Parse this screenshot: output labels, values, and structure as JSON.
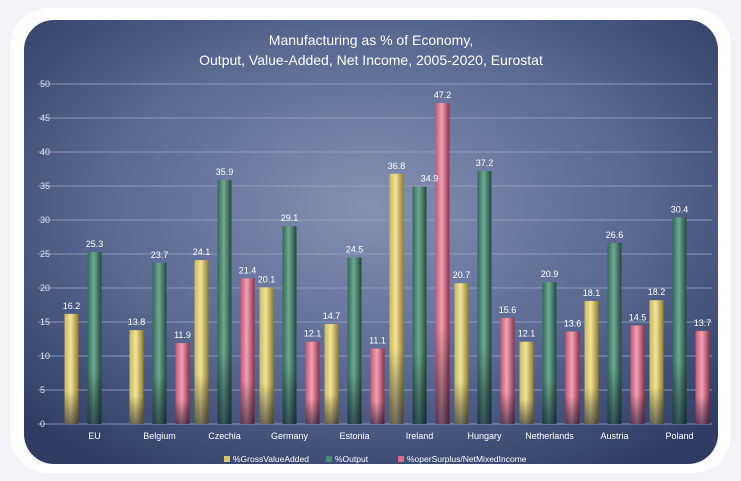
{
  "chart_data": {
    "type": "bar",
    "title": "Manufacturing as % of Economy,",
    "subtitle": "Output, Value-Added, Net Income, 2005-2020, Eurostat",
    "categories": [
      "EU",
      "Belgium",
      "Czechia",
      "Germany",
      "Estonia",
      "Ireland",
      "Hungary",
      "Netherlands",
      "Austria",
      "Poland"
    ],
    "series": [
      {
        "name": "%GrossValueAdded",
        "values": [
          16.2,
          13.8,
          24.1,
          20.1,
          14.7,
          36.8,
          20.7,
          12.1,
          18.1,
          18.2
        ]
      },
      {
        "name": "%Output",
        "values": [
          25.3,
          23.7,
          35.9,
          29.1,
          24.5,
          34.9,
          37.2,
          20.9,
          26.6,
          30.4
        ]
      },
      {
        "name": "%operSurplus/NetMixedIncome",
        "values": [
          null,
          11.9,
          21.4,
          12.1,
          11.1,
          47.2,
          15.6,
          13.6,
          14.5,
          13.7
        ]
      }
    ],
    "ylim": [
      0,
      50
    ],
    "yticks": [
      0,
      5,
      10,
      15,
      20,
      25,
      30,
      35,
      40,
      45,
      50
    ],
    "grid": true,
    "legend": "bottom",
    "colors": {
      "series": [
        "#d6c56b",
        "#4e8a72",
        "#d96c86"
      ],
      "background": "#5f6e98",
      "gridline": "#9aa4c2",
      "text": "#ffffff"
    }
  }
}
